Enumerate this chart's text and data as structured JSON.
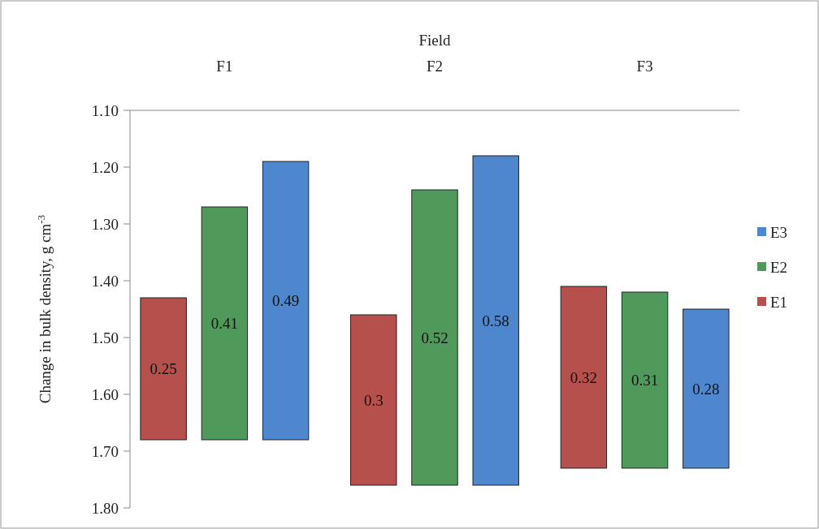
{
  "chart_data": {
    "type": "bar",
    "xlabel": "Field",
    "ylabel": "Change in bulk density, g cm$^{-3}$",
    "categories": [
      "F1",
      "F2",
      "F3"
    ],
    "series": [
      {
        "name": "E1",
        "color": "#b5504c",
        "values": [
          0.25,
          0.3,
          0.32
        ],
        "base": [
          1.43,
          1.46,
          1.41
        ]
      },
      {
        "name": "E2",
        "color": "#4f9a5a",
        "values": [
          0.41,
          0.52,
          0.31
        ],
        "base": [
          1.27,
          1.24,
          1.42
        ]
      },
      {
        "name": "E3",
        "color": "#4f87cf",
        "values": [
          0.49,
          0.58,
          0.28
        ],
        "base": [
          1.19,
          1.18,
          1.45
        ]
      }
    ],
    "ylim": [
      1.8,
      1.1
    ],
    "yticks": [
      {
        "value": 1.1,
        "label": "1.10"
      },
      {
        "value": 1.2,
        "label": "1.20"
      },
      {
        "value": 1.3,
        "label": "1.30"
      },
      {
        "value": 1.4,
        "label": "1.40"
      },
      {
        "value": 1.5,
        "label": "1.50"
      },
      {
        "value": 1.6,
        "label": "1.60"
      },
      {
        "value": 1.7,
        "label": "1.70"
      },
      {
        "value": 1.8,
        "label": "1.80"
      }
    ],
    "data_labels": true,
    "legend": "right",
    "grid": false
  }
}
